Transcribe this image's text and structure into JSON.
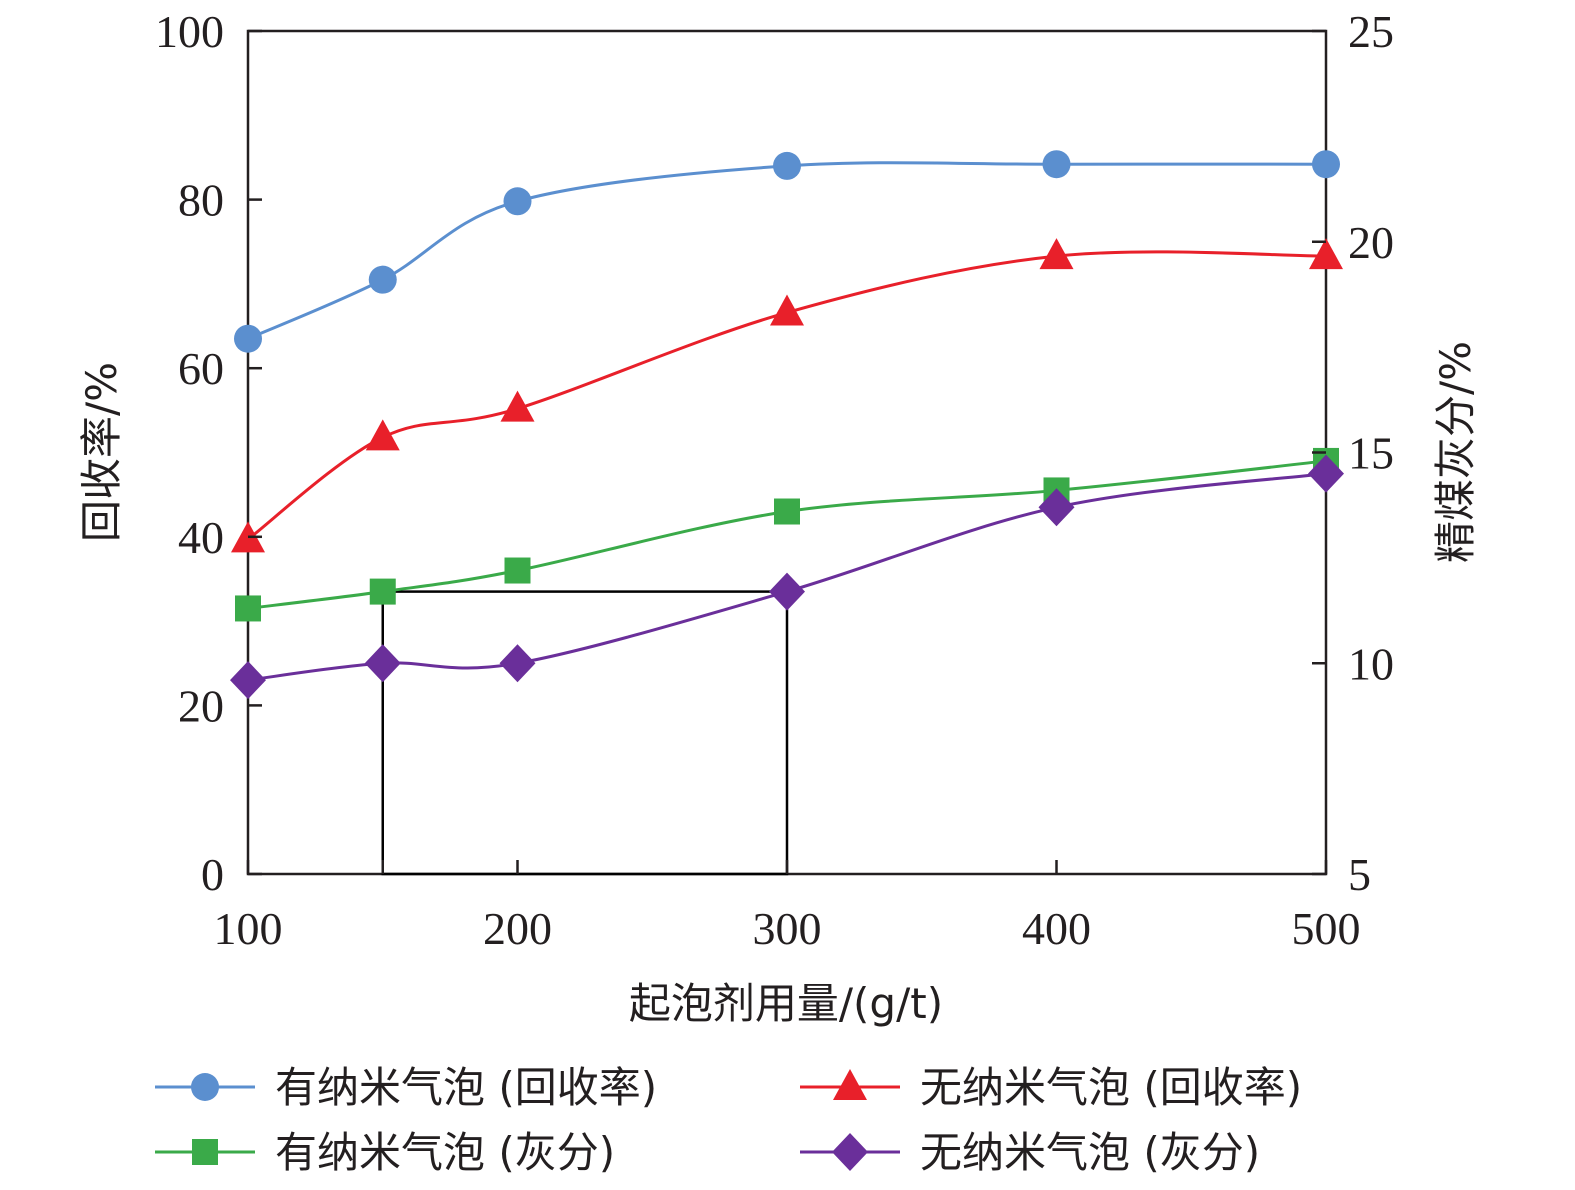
{
  "chart_data": {
    "type": "line",
    "xlabel": "起泡剂用量/(g/t)",
    "ylabel_left": "回收率/%",
    "ylabel_right": "精煤灰分/%",
    "x": [
      100,
      150,
      200,
      300,
      400,
      500
    ],
    "x_ticks": [
      100,
      200,
      300,
      400,
      500
    ],
    "xlim": [
      100,
      500
    ],
    "ylim_left": [
      0,
      100
    ],
    "ylim_right": [
      5,
      25
    ],
    "y_ticks_left": [
      0,
      20,
      40,
      60,
      80,
      100
    ],
    "y_ticks_right": [
      5,
      10,
      15,
      20,
      25
    ],
    "series": [
      {
        "name": "有纳米气泡 (回收率)",
        "axis": "left",
        "marker": "circle",
        "color": "#5b8fcf",
        "values": [
          63.5,
          70.5,
          79.8,
          84.0,
          84.2,
          84.2
        ]
      },
      {
        "name": "无纳米气泡 (回收率)",
        "axis": "left",
        "marker": "triangle",
        "color": "#e8202a",
        "values": [
          39.7,
          51.8,
          55.2,
          66.6,
          73.3,
          73.3
        ]
      },
      {
        "name": "有纳米气泡 (灰分)",
        "axis": "right",
        "marker": "square",
        "color": "#3aaa49",
        "values": [
          11.3,
          11.7,
          12.2,
          13.6,
          14.1,
          14.8
        ]
      },
      {
        "name": "无纳米气泡 (灰分)",
        "axis": "right",
        "marker": "diamond",
        "color": "#6a2f9a",
        "values": [
          9.6,
          10.0,
          10.0,
          11.7,
          13.7,
          14.5
        ]
      }
    ],
    "annotation_box": {
      "x_range": [
        150,
        300
      ],
      "y_range_left": [
        0,
        33.5
      ]
    },
    "grid": false,
    "legend_position": "bottom"
  }
}
